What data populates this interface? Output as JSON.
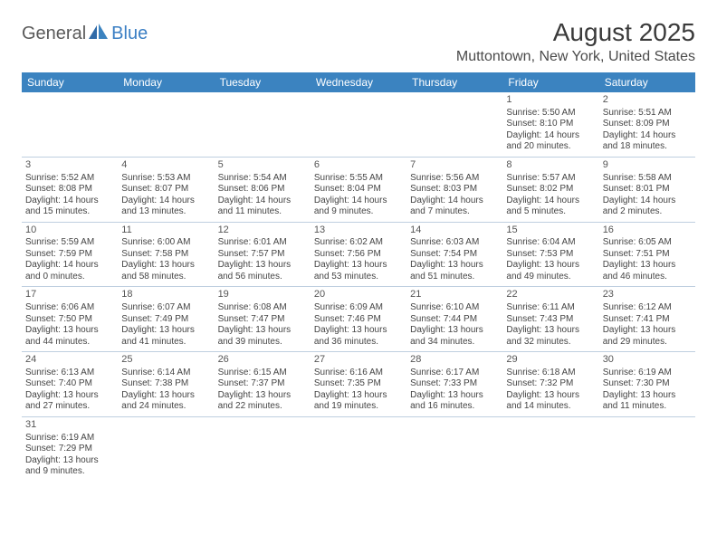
{
  "logo": {
    "part1": "General",
    "part2": "Blue"
  },
  "title": "August 2025",
  "location": "Muttontown, New York, United States",
  "colors": {
    "header_bg": "#3b83c0",
    "header_text": "#ffffff",
    "border": "#bfcfe0",
    "text": "#444444",
    "logo_gray": "#5a5a5a",
    "logo_blue": "#3b7fc4"
  },
  "day_headers": [
    "Sunday",
    "Monday",
    "Tuesday",
    "Wednesday",
    "Thursday",
    "Friday",
    "Saturday"
  ],
  "weeks": [
    [
      null,
      null,
      null,
      null,
      null,
      {
        "n": "1",
        "sr": "Sunrise: 5:50 AM",
        "ss": "Sunset: 8:10 PM",
        "d1": "Daylight: 14 hours",
        "d2": "and 20 minutes."
      },
      {
        "n": "2",
        "sr": "Sunrise: 5:51 AM",
        "ss": "Sunset: 8:09 PM",
        "d1": "Daylight: 14 hours",
        "d2": "and 18 minutes."
      }
    ],
    [
      {
        "n": "3",
        "sr": "Sunrise: 5:52 AM",
        "ss": "Sunset: 8:08 PM",
        "d1": "Daylight: 14 hours",
        "d2": "and 15 minutes."
      },
      {
        "n": "4",
        "sr": "Sunrise: 5:53 AM",
        "ss": "Sunset: 8:07 PM",
        "d1": "Daylight: 14 hours",
        "d2": "and 13 minutes."
      },
      {
        "n": "5",
        "sr": "Sunrise: 5:54 AM",
        "ss": "Sunset: 8:06 PM",
        "d1": "Daylight: 14 hours",
        "d2": "and 11 minutes."
      },
      {
        "n": "6",
        "sr": "Sunrise: 5:55 AM",
        "ss": "Sunset: 8:04 PM",
        "d1": "Daylight: 14 hours",
        "d2": "and 9 minutes."
      },
      {
        "n": "7",
        "sr": "Sunrise: 5:56 AM",
        "ss": "Sunset: 8:03 PM",
        "d1": "Daylight: 14 hours",
        "d2": "and 7 minutes."
      },
      {
        "n": "8",
        "sr": "Sunrise: 5:57 AM",
        "ss": "Sunset: 8:02 PM",
        "d1": "Daylight: 14 hours",
        "d2": "and 5 minutes."
      },
      {
        "n": "9",
        "sr": "Sunrise: 5:58 AM",
        "ss": "Sunset: 8:01 PM",
        "d1": "Daylight: 14 hours",
        "d2": "and 2 minutes."
      }
    ],
    [
      {
        "n": "10",
        "sr": "Sunrise: 5:59 AM",
        "ss": "Sunset: 7:59 PM",
        "d1": "Daylight: 14 hours",
        "d2": "and 0 minutes."
      },
      {
        "n": "11",
        "sr": "Sunrise: 6:00 AM",
        "ss": "Sunset: 7:58 PM",
        "d1": "Daylight: 13 hours",
        "d2": "and 58 minutes."
      },
      {
        "n": "12",
        "sr": "Sunrise: 6:01 AM",
        "ss": "Sunset: 7:57 PM",
        "d1": "Daylight: 13 hours",
        "d2": "and 56 minutes."
      },
      {
        "n": "13",
        "sr": "Sunrise: 6:02 AM",
        "ss": "Sunset: 7:56 PM",
        "d1": "Daylight: 13 hours",
        "d2": "and 53 minutes."
      },
      {
        "n": "14",
        "sr": "Sunrise: 6:03 AM",
        "ss": "Sunset: 7:54 PM",
        "d1": "Daylight: 13 hours",
        "d2": "and 51 minutes."
      },
      {
        "n": "15",
        "sr": "Sunrise: 6:04 AM",
        "ss": "Sunset: 7:53 PM",
        "d1": "Daylight: 13 hours",
        "d2": "and 49 minutes."
      },
      {
        "n": "16",
        "sr": "Sunrise: 6:05 AM",
        "ss": "Sunset: 7:51 PM",
        "d1": "Daylight: 13 hours",
        "d2": "and 46 minutes."
      }
    ],
    [
      {
        "n": "17",
        "sr": "Sunrise: 6:06 AM",
        "ss": "Sunset: 7:50 PM",
        "d1": "Daylight: 13 hours",
        "d2": "and 44 minutes."
      },
      {
        "n": "18",
        "sr": "Sunrise: 6:07 AM",
        "ss": "Sunset: 7:49 PM",
        "d1": "Daylight: 13 hours",
        "d2": "and 41 minutes."
      },
      {
        "n": "19",
        "sr": "Sunrise: 6:08 AM",
        "ss": "Sunset: 7:47 PM",
        "d1": "Daylight: 13 hours",
        "d2": "and 39 minutes."
      },
      {
        "n": "20",
        "sr": "Sunrise: 6:09 AM",
        "ss": "Sunset: 7:46 PM",
        "d1": "Daylight: 13 hours",
        "d2": "and 36 minutes."
      },
      {
        "n": "21",
        "sr": "Sunrise: 6:10 AM",
        "ss": "Sunset: 7:44 PM",
        "d1": "Daylight: 13 hours",
        "d2": "and 34 minutes."
      },
      {
        "n": "22",
        "sr": "Sunrise: 6:11 AM",
        "ss": "Sunset: 7:43 PM",
        "d1": "Daylight: 13 hours",
        "d2": "and 32 minutes."
      },
      {
        "n": "23",
        "sr": "Sunrise: 6:12 AM",
        "ss": "Sunset: 7:41 PM",
        "d1": "Daylight: 13 hours",
        "d2": "and 29 minutes."
      }
    ],
    [
      {
        "n": "24",
        "sr": "Sunrise: 6:13 AM",
        "ss": "Sunset: 7:40 PM",
        "d1": "Daylight: 13 hours",
        "d2": "and 27 minutes."
      },
      {
        "n": "25",
        "sr": "Sunrise: 6:14 AM",
        "ss": "Sunset: 7:38 PM",
        "d1": "Daylight: 13 hours",
        "d2": "and 24 minutes."
      },
      {
        "n": "26",
        "sr": "Sunrise: 6:15 AM",
        "ss": "Sunset: 7:37 PM",
        "d1": "Daylight: 13 hours",
        "d2": "and 22 minutes."
      },
      {
        "n": "27",
        "sr": "Sunrise: 6:16 AM",
        "ss": "Sunset: 7:35 PM",
        "d1": "Daylight: 13 hours",
        "d2": "and 19 minutes."
      },
      {
        "n": "28",
        "sr": "Sunrise: 6:17 AM",
        "ss": "Sunset: 7:33 PM",
        "d1": "Daylight: 13 hours",
        "d2": "and 16 minutes."
      },
      {
        "n": "29",
        "sr": "Sunrise: 6:18 AM",
        "ss": "Sunset: 7:32 PM",
        "d1": "Daylight: 13 hours",
        "d2": "and 14 minutes."
      },
      {
        "n": "30",
        "sr": "Sunrise: 6:19 AM",
        "ss": "Sunset: 7:30 PM",
        "d1": "Daylight: 13 hours",
        "d2": "and 11 minutes."
      }
    ],
    [
      {
        "n": "31",
        "sr": "Sunrise: 6:19 AM",
        "ss": "Sunset: 7:29 PM",
        "d1": "Daylight: 13 hours",
        "d2": "and 9 minutes."
      },
      null,
      null,
      null,
      null,
      null,
      null
    ]
  ]
}
